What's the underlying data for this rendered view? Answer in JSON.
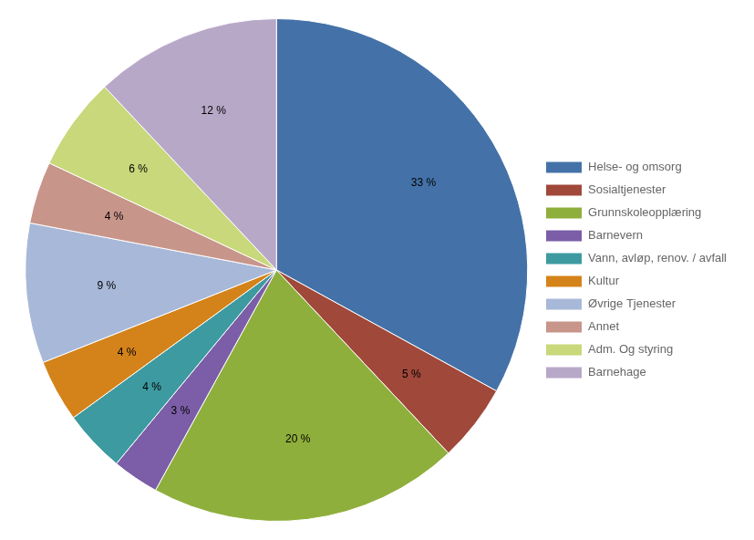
{
  "chart_data": {
    "type": "pie",
    "categories": [
      "Helse- og omsorg",
      "Sosialtjenester",
      "Grunnskoleopplæring",
      "Barnevern",
      "Vann, avløp, renov. / avfall",
      "Kultur",
      "Øvrige Tjenester",
      "Annet",
      "Adm. Og styring",
      "Barnehage"
    ],
    "values": [
      33,
      5,
      20,
      3,
      4,
      4,
      9,
      4,
      6,
      12
    ],
    "value_labels": [
      "33 %",
      "5 %",
      "20 %",
      "3 %",
      "4 %",
      "4 %",
      "9 %",
      "4 %",
      "6 %",
      "12 %"
    ],
    "colors": [
      "#4472A8",
      "#A0483A",
      "#8FAF3C",
      "#7B5EA7",
      "#3D9AA0",
      "#D4831A",
      "#A8B8D8",
      "#C8958A",
      "#C8D87A",
      "#B8A8C8"
    ],
    "data_labels": true,
    "legend": "right"
  }
}
